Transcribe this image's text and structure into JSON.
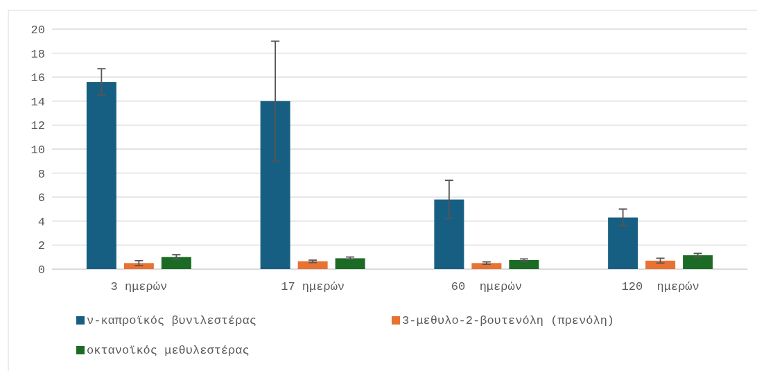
{
  "chart_data": {
    "type": "bar",
    "categories": [
      "3 ημερών",
      "17 ημερών",
      "60  ημερών",
      "120  ημερών"
    ],
    "series": [
      {
        "name": "ν-καπροϊκός βυνιλεστέρας",
        "color": "#175f82",
        "values": [
          15.6,
          14.0,
          5.8,
          4.3
        ],
        "errors": [
          1.1,
          5.0,
          1.6,
          0.7
        ]
      },
      {
        "name": "3-μεθυλο-2-βουτενόλη (πρενόλη)",
        "color": "#e87232",
        "values": [
          0.5,
          0.65,
          0.5,
          0.7
        ],
        "errors": [
          0.2,
          0.1,
          0.1,
          0.2
        ]
      },
      {
        "name": "οκτανοϊκός μεθυλεστέρας",
        "color": "#1c6b25",
        "values": [
          1.0,
          0.9,
          0.75,
          1.15
        ],
        "errors": [
          0.2,
          0.1,
          0.1,
          0.15
        ]
      }
    ],
    "ylim": [
      0,
      20
    ],
    "yticks": [
      0,
      2,
      4,
      6,
      8,
      10,
      12,
      14,
      16,
      18,
      20
    ],
    "grid": "y",
    "legend": "bottom"
  }
}
